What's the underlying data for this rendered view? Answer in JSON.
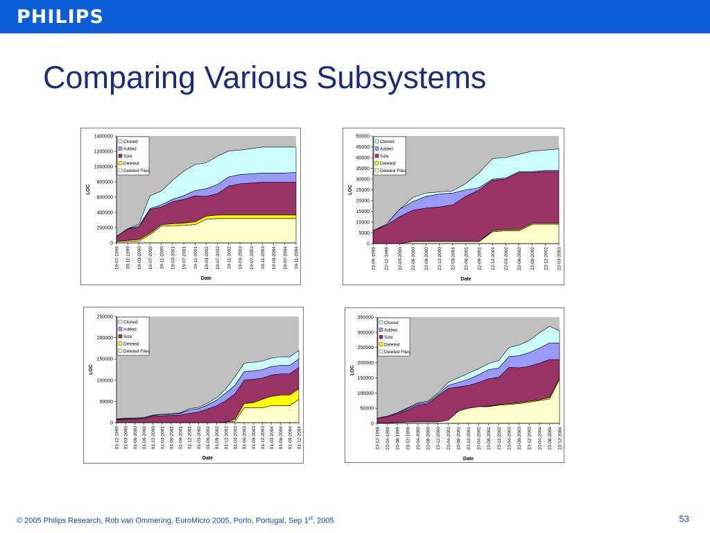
{
  "header": {
    "logo_text": "PHILIPS",
    "bar_color": "#0b5ed7"
  },
  "slide": {
    "title": "Comparing Various Subsystems",
    "page_number": "53"
  },
  "footer": {
    "text_before": "© 2005 Philips Research,  Rob van Ommering, EuroMicro 2005, Porto, Portugal, Sep 1",
    "superscript": "st",
    "text_after": ", 2005"
  },
  "colors": {
    "Cloned": "#ccffff",
    "Added": "#9999ff",
    "Size": "#993366",
    "Deleted": "#ffff00",
    "Deleted Files": "#ffffcc",
    "plot_bg": "#c0c0c0"
  },
  "chart_data": [
    {
      "type": "area",
      "xlabel": "Date",
      "ylabel": "LOC",
      "legend": [
        "Cloned",
        "Added",
        "Size",
        "Deleted",
        "Deleted Files"
      ],
      "legend_position": "top-left",
      "ylim": [
        0,
        1400000
      ],
      "yticks": [
        "0",
        "200000",
        "400000",
        "600000",
        "800000",
        "1000000",
        "1200000",
        "1400000"
      ],
      "categories": [
        "19-07-1999",
        "19-11-1999",
        "19-03-2000",
        "19-07-2000",
        "19-11-2000",
        "19-03-2001",
        "19-07-2001",
        "19-11-2001",
        "19-03-2002",
        "19-07-2002",
        "19-11-2002",
        "19-03-2003",
        "19-07-2003",
        "19-11-2003",
        "19-03-2004",
        "19-07-2004",
        "19-11-2004"
      ],
      "series": [
        {
          "name": "Deleted Files",
          "values": [
            15000,
            20000,
            25000,
            110000,
            220000,
            225000,
            230000,
            240000,
            310000,
            320000,
            320000,
            320000,
            320000,
            320000,
            320000,
            320000,
            320000
          ]
        },
        {
          "name": "Deleted",
          "values": [
            10000,
            15000,
            20000,
            20000,
            20000,
            25000,
            30000,
            35000,
            40000,
            45000,
            45000,
            45000,
            45000,
            45000,
            45000,
            45000,
            45000
          ]
        },
        {
          "name": "Size",
          "values": [
            60000,
            145000,
            160000,
            310000,
            230000,
            290000,
            310000,
            340000,
            260000,
            280000,
            380000,
            410000,
            420000,
            430000,
            430000,
            430000,
            430000
          ]
        },
        {
          "name": "Added",
          "values": [
            0,
            5000,
            20000,
            10000,
            30000,
            30000,
            50000,
            70000,
            100000,
            120000,
            120000,
            120000,
            120000,
            120000,
            120000,
            120000,
            130000
          ]
        },
        {
          "name": "Cloned",
          "values": [
            0,
            0,
            20000,
            170000,
            180000,
            250000,
            320000,
            340000,
            340000,
            370000,
            340000,
            320000,
            330000,
            340000,
            340000,
            340000,
            330000
          ]
        }
      ]
    },
    {
      "type": "area",
      "xlabel": "Date",
      "ylabel": "LOC",
      "legend": [
        "Cloned",
        "Added",
        "Size",
        "Deleted",
        "Deleted Files"
      ],
      "legend_position": "top-left",
      "ylim": [
        0,
        50000
      ],
      "yticks": [
        "0",
        "5000",
        "10000",
        "15000",
        "20000",
        "25000",
        "30000",
        "35000",
        "40000",
        "45000",
        "50000"
      ],
      "categories": [
        "22-09-1999",
        "22-12-1999",
        "22-03-2000",
        "22-06-2000",
        "22-09-2000",
        "22-12-2000",
        "22-03-2001",
        "22-06-2001",
        "22-09-2001",
        "22-12-2001",
        "22-03-2002",
        "22-06-2002",
        "22-09-2002",
        "22-12-2002",
        "22-03-2003"
      ],
      "series": [
        {
          "name": "Deleted Files",
          "values": [
            0,
            0,
            0,
            1000,
            1000,
            1000,
            1000,
            1000,
            1000,
            5500,
            6000,
            6000,
            9000,
            9000,
            9000
          ]
        },
        {
          "name": "Deleted",
          "values": [
            0,
            0,
            0,
            0,
            0,
            0,
            0,
            0,
            0,
            500,
            500,
            500,
            500,
            500,
            500
          ]
        },
        {
          "name": "Size",
          "values": [
            6000,
            8500,
            12500,
            14500,
            15500,
            16000,
            17000,
            21000,
            24000,
            23500,
            23500,
            26500,
            23500,
            24000,
            24000
          ]
        },
        {
          "name": "Added",
          "values": [
            0,
            500,
            3500,
            4000,
            5500,
            6000,
            5500,
            3000,
            1000,
            500,
            500,
            500,
            500,
            500,
            500
          ]
        },
        {
          "name": "Cloned",
          "values": [
            0,
            0,
            0,
            2000,
            1500,
            1000,
            1000,
            3000,
            7000,
            9500,
            9500,
            8000,
            9500,
            9500,
            10000
          ]
        }
      ]
    },
    {
      "type": "area",
      "xlabel": "Date",
      "ylabel": "LOC",
      "legend": [
        "Cloned",
        "Added",
        "Size",
        "Deleted",
        "Deleted Files"
      ],
      "legend_position": "top-left",
      "ylim": [
        0,
        250000
      ],
      "yticks": [
        "0",
        "50000",
        "100000",
        "150000",
        "200000",
        "250000"
      ],
      "categories": [
        "01-12-1999",
        "01-03-2000",
        "01-06-2000",
        "01-09-2000",
        "01-12-2000",
        "01-03-2001",
        "01-06-2001",
        "01-09-2001",
        "01-12-2001",
        "01-03-2002",
        "01-06-2002",
        "01-09-2002",
        "01-12-2002",
        "01-03-2003",
        "01-06-2003",
        "01-09-2003",
        "01-12-2003",
        "01-03-2004",
        "01-06-2004",
        "01-09-2004",
        "01-12-2004"
      ],
      "series": [
        {
          "name": "Deleted Files",
          "values": [
            0,
            0,
            0,
            0,
            0,
            0,
            0,
            0,
            0,
            0,
            0,
            0,
            2000,
            3000,
            35000,
            35000,
            35000,
            40000,
            40000,
            40000,
            55000
          ]
        },
        {
          "name": "Deleted",
          "values": [
            0,
            0,
            0,
            0,
            0,
            0,
            0,
            0,
            0,
            0,
            0,
            0,
            0,
            5000,
            10000,
            12000,
            20000,
            22000,
            25000,
            25000,
            25000
          ]
        },
        {
          "name": "Size",
          "values": [
            7000,
            8000,
            8000,
            9000,
            15000,
            16000,
            17000,
            18000,
            22000,
            25000,
            32000,
            40000,
            50000,
            60000,
            55000,
            55000,
            50000,
            50000,
            50000,
            50000,
            50000
          ]
        },
        {
          "name": "Added",
          "values": [
            1000,
            1500,
            2000,
            2000,
            2000,
            3000,
            3000,
            4000,
            8000,
            8000,
            10000,
            13000,
            18000,
            20000,
            20000,
            20000,
            20000,
            20000,
            20000,
            20000,
            20000
          ]
        },
        {
          "name": "Cloned",
          "values": [
            1000,
            1000,
            1000,
            1000,
            1000,
            1000,
            1000,
            1000,
            3000,
            3000,
            4000,
            6000,
            10000,
            20000,
            20000,
            20000,
            20000,
            20000,
            20000,
            20000,
            20000
          ]
        }
      ]
    },
    {
      "type": "area",
      "xlabel": "Date",
      "ylabel": "LOC",
      "legend": [
        "Cloned",
        "Added",
        "Size",
        "Deleted",
        "Deleted Files"
      ],
      "legend_position": "top-left",
      "ylim": [
        0,
        350000
      ],
      "yticks": [
        "0",
        "50000",
        "100000",
        "150000",
        "200000",
        "250000",
        "300000",
        "350000"
      ],
      "categories": [
        "23-12-1998",
        "23-04-1999",
        "23-08-1999",
        "23-12-1999",
        "23-04-2000",
        "23-08-2000",
        "23-12-2000",
        "23-04-2001",
        "23-08-2001",
        "23-12-2001",
        "23-04-2002",
        "23-08-2002",
        "23-12-2002",
        "23-04-2003",
        "23-08-2003",
        "23-12-2003",
        "23-04-2004",
        "23-08-2004",
        "23-12-2004"
      ],
      "series": [
        {
          "name": "Deleted Files",
          "values": [
            1000,
            2000,
            3000,
            4000,
            5000,
            5000,
            5000,
            10000,
            40000,
            50000,
            55000,
            55000,
            60000,
            62000,
            65000,
            70000,
            75000,
            80000,
            145000
          ]
        },
        {
          "name": "Deleted",
          "values": [
            0,
            0,
            0,
            0,
            0,
            0,
            0,
            0,
            0,
            0,
            0,
            2000,
            2000,
            3000,
            3000,
            3000,
            3000,
            5000,
            5000
          ]
        },
        {
          "name": "Size",
          "values": [
            15000,
            20000,
            28000,
            40000,
            55000,
            60000,
            85000,
            105000,
            80000,
            75000,
            80000,
            90000,
            90000,
            120000,
            115000,
            115000,
            120000,
            125000,
            60000
          ]
        },
        {
          "name": "Added",
          "values": [
            1000,
            2000,
            3000,
            5000,
            5000,
            5000,
            5000,
            10000,
            15000,
            20000,
            25000,
            30000,
            30000,
            35000,
            40000,
            45000,
            50000,
            55000,
            55000
          ]
        },
        {
          "name": "Cloned",
          "values": [
            0,
            0,
            1000,
            2000,
            3000,
            3000,
            5000,
            10000,
            15000,
            20000,
            20000,
            20000,
            25000,
            30000,
            35000,
            40000,
            50000,
            55000,
            40000
          ]
        }
      ]
    }
  ]
}
